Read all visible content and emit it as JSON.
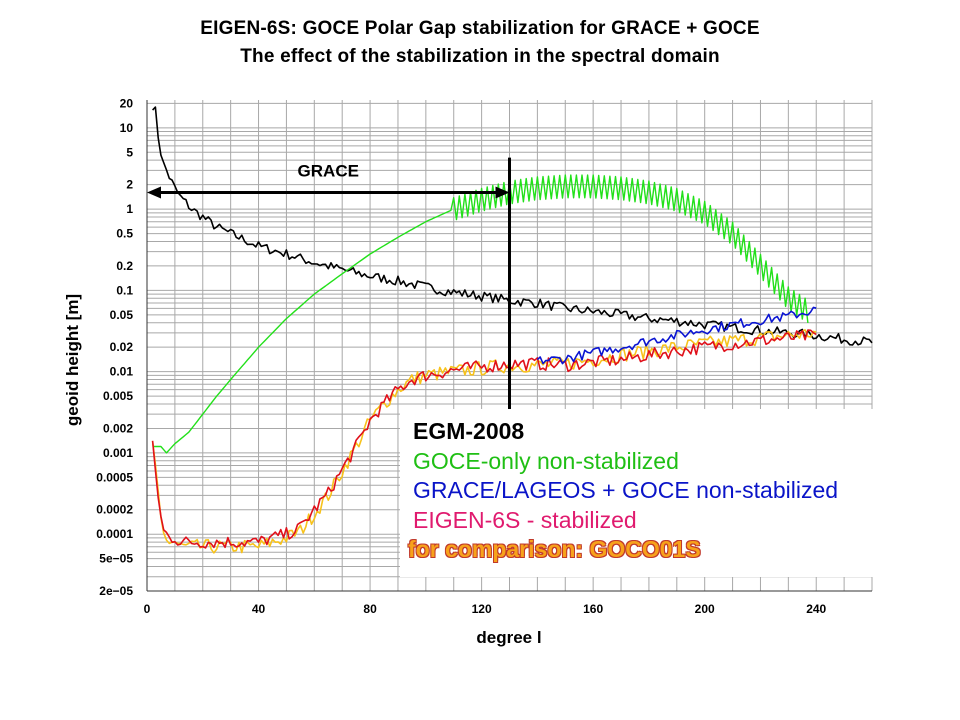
{
  "title": {
    "line1": "EIGEN-6S: GOCE Polar Gap stabilization for GRACE + GOCE",
    "line2": "The effect of the stabilization in the spectral domain"
  },
  "colors": {
    "egm": "#000000",
    "goce_only": "#22e01a",
    "grace_goce": "#0a14d2",
    "eigen6s": "#e0101a",
    "goco01s": "#f7c21b",
    "legend_goce": "#1fbf14",
    "legend_grace": "#0a14c8",
    "legend_eigen": "#e01a6e"
  },
  "legend": {
    "egm": "EGM-2008",
    "goce": "GOCE-only non-stabilized",
    "grace_part": "GRACE/LAGEOS + GOCE",
    "grace_rest": " non-stabilized",
    "eigen": "EIGEN-6S - stabilized",
    "goco": "for comparison: GOCO01S"
  },
  "chart_data": {
    "type": "line",
    "xlabel": "degree l",
    "ylabel": "geoid height [m]",
    "x_ticks": [
      0,
      40,
      80,
      120,
      160,
      200,
      240
    ],
    "y_ticks": [
      {
        "v": 20,
        "label": "20"
      },
      {
        "v": 10,
        "label": "10"
      },
      {
        "v": 5,
        "label": "5"
      },
      {
        "v": 2,
        "label": "2"
      },
      {
        "v": 1,
        "label": "1"
      },
      {
        "v": 0.5,
        "label": "0.5"
      },
      {
        "v": 0.2,
        "label": "0.2"
      },
      {
        "v": 0.1,
        "label": "0.1"
      },
      {
        "v": 0.05,
        "label": "0.05"
      },
      {
        "v": 0.02,
        "label": "0.02"
      },
      {
        "v": 0.01,
        "label": "0.01"
      },
      {
        "v": 0.005,
        "label": "0.005"
      },
      {
        "v": 0.002,
        "label": "0.002"
      },
      {
        "v": 0.001,
        "label": "0.001"
      },
      {
        "v": 0.0005,
        "label": "0.0005"
      },
      {
        "v": 0.0002,
        "label": "0.0002"
      },
      {
        "v": 0.0001,
        "label": "0.0001"
      },
      {
        "v": 5e-05,
        "label": "5e−05"
      },
      {
        "v": 2e-05,
        "label": "2e−05"
      }
    ],
    "xlim": [
      0,
      260
    ],
    "ylim": [
      2e-05,
      22
    ],
    "y_scale": "log",
    "grid": true,
    "annotations": [
      {
        "text": "GRACE",
        "type": "double-arrow",
        "x_from": 0,
        "x_to": 130
      },
      {
        "type": "vertical-line",
        "x": 130,
        "y_from": 0.002,
        "y_to": 4.3
      }
    ],
    "series": [
      {
        "name": "EGM-2008",
        "color": "#000000",
        "x": [
          2,
          3,
          4,
          5,
          6,
          7,
          8,
          10,
          12,
          14,
          16,
          20,
          25,
          30,
          35,
          40,
          50,
          60,
          70,
          80,
          90,
          100,
          110,
          120,
          130,
          140,
          150,
          160,
          170,
          180,
          190,
          200,
          210,
          220,
          230,
          240,
          250,
          260
        ],
        "y": [
          19,
          16,
          8,
          5,
          3.5,
          3,
          2.5,
          1.8,
          1.4,
          1.2,
          1.0,
          0.8,
          0.6,
          0.5,
          0.42,
          0.35,
          0.28,
          0.22,
          0.18,
          0.15,
          0.13,
          0.11,
          0.095,
          0.085,
          0.075,
          0.07,
          0.06,
          0.055,
          0.05,
          0.045,
          0.042,
          0.038,
          0.035,
          0.032,
          0.03,
          0.028,
          0.025,
          0.023
        ],
        "noise": 0.06
      },
      {
        "name": "GOCE-only non-stabilized",
        "color": "#22e01a",
        "x": [
          2,
          5,
          7,
          10,
          15,
          20,
          25,
          30,
          40,
          50,
          60,
          70,
          80,
          90,
          100,
          110,
          120,
          130,
          140,
          150,
          160,
          170,
          180,
          190,
          200,
          210,
          220,
          230,
          237
        ],
        "y": [
          0.0012,
          0.0012,
          0.001,
          0.0013,
          0.0018,
          0.003,
          0.005,
          0.008,
          0.02,
          0.045,
          0.09,
          0.16,
          0.28,
          0.45,
          0.7,
          1.0,
          1.3,
          1.6,
          1.8,
          1.9,
          1.9,
          1.8,
          1.6,
          1.3,
          0.9,
          0.5,
          0.2,
          0.08,
          0.055
        ],
        "zigzag_from": 110,
        "zigzag_amp": 0.28
      },
      {
        "name": "GRACE/LAGEOS + GOCE non-stabilized",
        "color": "#0a14d2",
        "x": [
          140,
          150,
          160,
          170,
          180,
          190,
          200,
          210,
          220,
          230,
          240
        ],
        "y": [
          0.0135,
          0.0145,
          0.017,
          0.02,
          0.024,
          0.028,
          0.033,
          0.038,
          0.043,
          0.048,
          0.058
        ],
        "noise": 0.06
      },
      {
        "name": "GOCO01S",
        "color": "#f7c21b",
        "x": [
          2,
          3,
          4,
          5,
          6,
          7,
          8,
          10,
          12,
          15,
          20,
          25,
          30,
          35,
          40,
          45,
          50,
          55,
          60,
          65,
          70,
          75,
          80,
          85,
          90,
          95,
          100,
          110,
          120,
          130,
          140,
          150,
          160,
          170,
          180,
          190,
          200,
          210,
          220,
          230,
          240
        ],
        "y": [
          0.0012,
          0.0006,
          0.0003,
          0.00015,
          0.0001,
          9e-05,
          8e-05,
          8e-05,
          7e-05,
          7e-05,
          7e-05,
          7e-05,
          7e-05,
          7e-05,
          7e-05,
          8e-05,
          9e-05,
          0.00011,
          0.00018,
          0.0003,
          0.0006,
          0.0012,
          0.0025,
          0.004,
          0.006,
          0.008,
          0.009,
          0.01,
          0.011,
          0.012,
          0.012,
          0.0125,
          0.014,
          0.016,
          0.018,
          0.02,
          0.022,
          0.024,
          0.026,
          0.028,
          0.03
        ],
        "noise": 0.09
      },
      {
        "name": "EIGEN-6S - stabilized",
        "color": "#e0101a",
        "x": [
          2,
          3,
          4,
          5,
          6,
          7,
          8,
          10,
          12,
          15,
          20,
          25,
          30,
          35,
          40,
          45,
          50,
          55,
          60,
          65,
          70,
          75,
          80,
          85,
          90,
          95,
          100,
          110,
          120,
          130,
          140,
          150,
          160,
          170,
          180,
          190,
          200,
          210,
          220,
          230,
          240
        ],
        "y": [
          0.0012,
          0.0006,
          0.0003,
          0.00016,
          0.00011,
          0.0001,
          9e-05,
          9e-05,
          8e-05,
          8e-05,
          8e-05,
          8e-05,
          8e-05,
          8e-05,
          8e-05,
          9e-05,
          0.0001,
          0.00012,
          0.0002,
          0.00032,
          0.00062,
          0.0012,
          0.0025,
          0.004,
          0.006,
          0.008,
          0.009,
          0.0105,
          0.0115,
          0.0125,
          0.0125,
          0.012,
          0.013,
          0.014,
          0.016,
          0.018,
          0.02,
          0.022,
          0.024,
          0.026,
          0.028
        ],
        "noise": 0.08
      }
    ]
  }
}
